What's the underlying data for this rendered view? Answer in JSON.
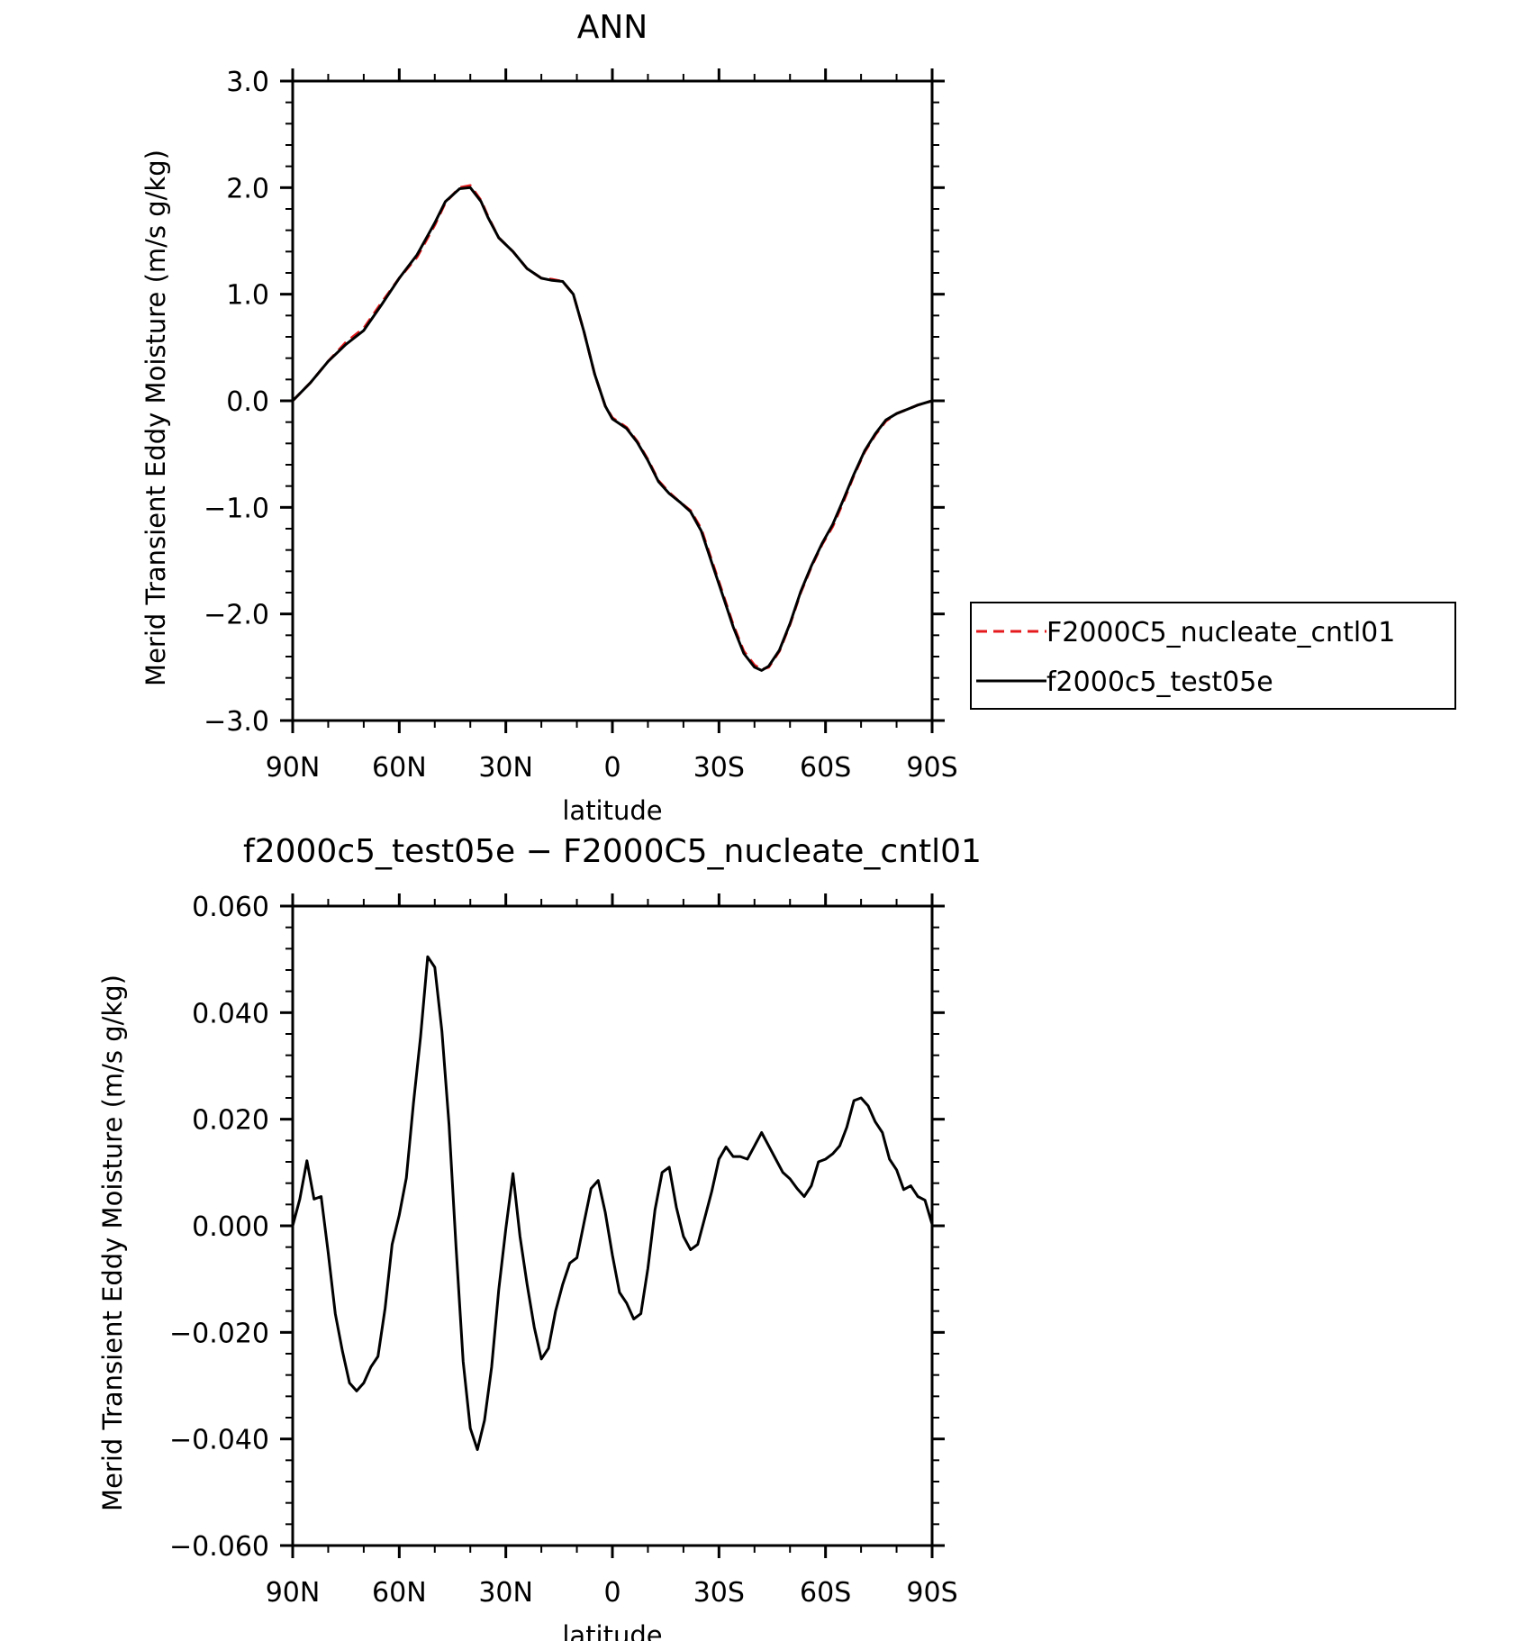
{
  "chart_data": [
    {
      "type": "line",
      "title": "ANN",
      "xlabel": "latitude",
      "ylabel": "Merid Transient Eddy Moisture (m/s g/kg)",
      "xlim": [
        90,
        -90
      ],
      "ylim": [
        -3.0,
        3.0
      ],
      "x_ticks": [
        90,
        60,
        30,
        0,
        -30,
        -60,
        -90
      ],
      "x_tick_labels": [
        "90N",
        "60N",
        "30N",
        "0",
        "30S",
        "60S",
        "90S"
      ],
      "y_ticks": [
        -3,
        -2,
        -1,
        0,
        1,
        2,
        3
      ],
      "y_tick_labels": [
        "−3.0",
        "−2.0",
        "−1.0",
        "0.0",
        "1.0",
        "2.0",
        "3.0"
      ],
      "legend": {
        "position": "right"
      },
      "series": [
        {
          "name": "F2000C5_nucleate_cntl01",
          "color": "#e41a1c",
          "dash": "dashed",
          "points": [
            [
              90,
              0.0
            ],
            [
              85,
              0.17
            ],
            [
              80,
              0.37
            ],
            [
              75,
              0.55
            ],
            [
              70,
              0.68
            ],
            [
              65,
              0.92
            ],
            [
              60,
              1.15
            ],
            [
              55,
              1.35
            ],
            [
              50,
              1.65
            ],
            [
              47,
              1.86
            ],
            [
              43,
              2.0
            ],
            [
              40,
              2.02
            ],
            [
              37,
              1.88
            ],
            [
              35,
              1.73
            ],
            [
              32,
              1.53
            ],
            [
              28,
              1.4
            ],
            [
              24,
              1.24
            ],
            [
              20,
              1.15
            ],
            [
              17,
              1.14
            ],
            [
              14,
              1.12
            ],
            [
              11,
              1.0
            ],
            [
              8,
              0.65
            ],
            [
              5,
              0.25
            ],
            [
              2,
              -0.05
            ],
            [
              0,
              -0.16
            ],
            [
              -4,
              -0.25
            ],
            [
              -7,
              -0.38
            ],
            [
              -10,
              -0.55
            ],
            [
              -13,
              -0.75
            ],
            [
              -16,
              -0.86
            ],
            [
              -19,
              -0.95
            ],
            [
              -22,
              -1.03
            ],
            [
              -25,
              -1.2
            ],
            [
              -28,
              -1.5
            ],
            [
              -31,
              -1.8
            ],
            [
              -34,
              -2.1
            ],
            [
              -37,
              -2.35
            ],
            [
              -40,
              -2.48
            ],
            [
              -42,
              -2.52
            ],
            [
              -44,
              -2.5
            ],
            [
              -47,
              -2.35
            ],
            [
              -50,
              -2.1
            ],
            [
              -53,
              -1.8
            ],
            [
              -56,
              -1.56
            ],
            [
              -59,
              -1.35
            ],
            [
              -62,
              -1.18
            ],
            [
              -65,
              -0.95
            ],
            [
              -68,
              -0.7
            ],
            [
              -71,
              -0.48
            ],
            [
              -74,
              -0.32
            ],
            [
              -77,
              -0.19
            ],
            [
              -80,
              -0.12
            ],
            [
              -83,
              -0.08
            ],
            [
              -86,
              -0.04
            ],
            [
              -90,
              0.0
            ]
          ]
        },
        {
          "name": "f2000c5_test05e",
          "color": "#000000",
          "dash": "solid",
          "points": [
            [
              90,
              0.0
            ],
            [
              85,
              0.17
            ],
            [
              80,
              0.37
            ],
            [
              75,
              0.53
            ],
            [
              70,
              0.66
            ],
            [
              65,
              0.9
            ],
            [
              60,
              1.15
            ],
            [
              55,
              1.37
            ],
            [
              50,
              1.67
            ],
            [
              47,
              1.87
            ],
            [
              43,
              1.99
            ],
            [
              40,
              2.0
            ],
            [
              37,
              1.87
            ],
            [
              35,
              1.72
            ],
            [
              32,
              1.53
            ],
            [
              28,
              1.4
            ],
            [
              24,
              1.24
            ],
            [
              20,
              1.15
            ],
            [
              17,
              1.13
            ],
            [
              14,
              1.12
            ],
            [
              11,
              1.0
            ],
            [
              8,
              0.65
            ],
            [
              5,
              0.25
            ],
            [
              2,
              -0.05
            ],
            [
              0,
              -0.17
            ],
            [
              -4,
              -0.26
            ],
            [
              -7,
              -0.39
            ],
            [
              -10,
              -0.56
            ],
            [
              -13,
              -0.76
            ],
            [
              -16,
              -0.87
            ],
            [
              -19,
              -0.95
            ],
            [
              -22,
              -1.04
            ],
            [
              -25,
              -1.22
            ],
            [
              -28,
              -1.52
            ],
            [
              -31,
              -1.82
            ],
            [
              -34,
              -2.12
            ],
            [
              -37,
              -2.37
            ],
            [
              -40,
              -2.5
            ],
            [
              -42,
              -2.53
            ],
            [
              -44,
              -2.49
            ],
            [
              -47,
              -2.34
            ],
            [
              -50,
              -2.09
            ],
            [
              -53,
              -1.79
            ],
            [
              -56,
              -1.55
            ],
            [
              -59,
              -1.34
            ],
            [
              -62,
              -1.16
            ],
            [
              -65,
              -0.93
            ],
            [
              -68,
              -0.69
            ],
            [
              -71,
              -0.47
            ],
            [
              -74,
              -0.31
            ],
            [
              -77,
              -0.18
            ],
            [
              -80,
              -0.12
            ],
            [
              -83,
              -0.08
            ],
            [
              -86,
              -0.04
            ],
            [
              -90,
              0.0
            ]
          ]
        }
      ]
    },
    {
      "type": "line",
      "title": "f2000c5_test05e − F2000C5_nucleate_cntl01",
      "xlabel": "latitude",
      "ylabel": "Merid Transient Eddy Moisture (m/s g/kg)",
      "xlim": [
        90,
        -90
      ],
      "ylim": [
        -0.06,
        0.06
      ],
      "x_ticks": [
        90,
        60,
        30,
        0,
        -30,
        -60,
        -90
      ],
      "x_tick_labels": [
        "90N",
        "60N",
        "30N",
        "0",
        "30S",
        "60S",
        "90S"
      ],
      "y_ticks": [
        -0.06,
        -0.04,
        -0.02,
        0,
        0.02,
        0.04,
        0.06
      ],
      "y_tick_labels": [
        "−0.060",
        "−0.040",
        "−0.020",
        "0.000",
        "0.020",
        "0.040",
        "0.060"
      ],
      "series": [
        {
          "color": "#000000",
          "dash": "solid",
          "points": [
            [
              90,
              0.0
            ],
            [
              88,
              0.005
            ],
            [
              86,
              0.0122
            ],
            [
              84,
              0.005
            ],
            [
              82,
              0.0055
            ],
            [
              80,
              -0.005
            ],
            [
              78,
              -0.0165
            ],
            [
              76,
              -0.0235
            ],
            [
              74,
              -0.0295
            ],
            [
              72,
              -0.031
            ],
            [
              70,
              -0.0295
            ],
            [
              68,
              -0.0265
            ],
            [
              66,
              -0.0245
            ],
            [
              64,
              -0.0155
            ],
            [
              62,
              -0.0035
            ],
            [
              60,
              0.002
            ],
            [
              58,
              0.009
            ],
            [
              56,
              0.023
            ],
            [
              54,
              0.0355
            ],
            [
              52,
              0.0505
            ],
            [
              50,
              0.0485
            ],
            [
              48,
              0.0365
            ],
            [
              46,
              0.019
            ],
            [
              44,
              -0.004
            ],
            [
              42,
              -0.0255
            ],
            [
              40,
              -0.038
            ],
            [
              38,
              -0.042
            ],
            [
              36,
              -0.0365
            ],
            [
              34,
              -0.0265
            ],
            [
              32,
              -0.012
            ],
            [
              30,
              -0.0005
            ],
            [
              28,
              0.0098
            ],
            [
              26,
              -0.002
            ],
            [
              24,
              -0.011
            ],
            [
              22,
              -0.019
            ],
            [
              20,
              -0.025
            ],
            [
              18,
              -0.023
            ],
            [
              16,
              -0.016
            ],
            [
              14,
              -0.011
            ],
            [
              12,
              -0.007
            ],
            [
              10,
              -0.006
            ],
            [
              8,
              0.0005
            ],
            [
              6,
              0.007
            ],
            [
              4,
              0.0085
            ],
            [
              2,
              0.0025
            ],
            [
              0,
              -0.0055
            ],
            [
              -2,
              -0.0125
            ],
            [
              -4,
              -0.0145
            ],
            [
              -6,
              -0.0175
            ],
            [
              -8,
              -0.0165
            ],
            [
              -10,
              -0.008
            ],
            [
              -12,
              0.003
            ],
            [
              -14,
              0.01
            ],
            [
              -16,
              0.011
            ],
            [
              -18,
              0.0035
            ],
            [
              -20,
              -0.002
            ],
            [
              -22,
              -0.0045
            ],
            [
              -24,
              -0.0035
            ],
            [
              -26,
              0.0015
            ],
            [
              -28,
              0.0065
            ],
            [
              -30,
              0.0125
            ],
            [
              -32,
              0.0148
            ],
            [
              -34,
              0.013
            ],
            [
              -36,
              0.013
            ],
            [
              -38,
              0.0125
            ],
            [
              -40,
              0.015
            ],
            [
              -42,
              0.0175
            ],
            [
              -44,
              0.015
            ],
            [
              -46,
              0.0125
            ],
            [
              -48,
              0.01
            ],
            [
              -50,
              0.0088
            ],
            [
              -52,
              0.007
            ],
            [
              -54,
              0.0055
            ],
            [
              -56,
              0.0075
            ],
            [
              -58,
              0.012
            ],
            [
              -60,
              0.0125
            ],
            [
              -62,
              0.0135
            ],
            [
              -64,
              0.015
            ],
            [
              -66,
              0.0185
            ],
            [
              -68,
              0.0235
            ],
            [
              -70,
              0.024
            ],
            [
              -72,
              0.0225
            ],
            [
              -74,
              0.0195
            ],
            [
              -76,
              0.0175
            ],
            [
              -78,
              0.0125
            ],
            [
              -80,
              0.0105
            ],
            [
              -82,
              0.0068
            ],
            [
              -84,
              0.0075
            ],
            [
              -86,
              0.0055
            ],
            [
              -88,
              0.0048
            ],
            [
              -90,
              0.0003
            ],
            [
              -91,
              0.003
            ],
            [
              -92,
              0.001
            ],
            [
              -93,
              0.0008
            ],
            [
              -94,
              0.0
            ]
          ]
        }
      ]
    }
  ]
}
